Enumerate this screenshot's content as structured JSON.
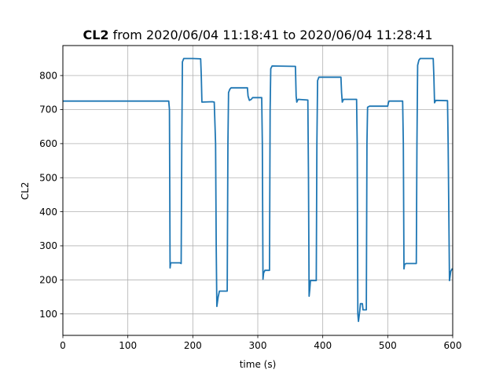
{
  "chart_data": {
    "type": "line",
    "title_bold": "CL2",
    "title_rest": " from 2020/06/04 11:18:41 to 2020/06/04 11:28:41",
    "xlabel": "time (s)",
    "ylabel": "CL2",
    "xlim": [
      0,
      600
    ],
    "ylim": [
      37,
      888
    ],
    "xticks": [
      0,
      100,
      200,
      300,
      400,
      500,
      600
    ],
    "yticks": [
      100,
      200,
      300,
      400,
      500,
      600,
      700,
      800
    ],
    "grid": true,
    "line_color": "#1f77b4",
    "series": [
      {
        "values": [
          [
            0,
            725
          ],
          [
            80,
            725
          ],
          [
            163,
            725
          ],
          [
            164,
            700
          ],
          [
            165,
            235
          ],
          [
            166,
            250
          ],
          [
            180,
            250
          ],
          [
            182,
            248
          ],
          [
            183,
            600
          ],
          [
            184,
            840
          ],
          [
            186,
            850
          ],
          [
            200,
            850
          ],
          [
            212,
            849
          ],
          [
            213,
            800
          ],
          [
            214,
            722
          ],
          [
            230,
            723
          ],
          [
            233,
            722
          ],
          [
            235,
            600
          ],
          [
            236,
            300
          ],
          [
            237,
            122
          ],
          [
            239,
            150
          ],
          [
            241,
            167
          ],
          [
            253,
            167
          ],
          [
            254,
            600
          ],
          [
            255,
            750
          ],
          [
            257,
            760
          ],
          [
            259,
            764
          ],
          [
            284,
            764
          ],
          [
            285,
            740
          ],
          [
            287,
            727
          ],
          [
            290,
            730
          ],
          [
            292,
            735
          ],
          [
            306,
            735
          ],
          [
            307,
            600
          ],
          [
            308,
            202
          ],
          [
            309,
            220
          ],
          [
            311,
            228
          ],
          [
            318,
            228
          ],
          [
            319,
            700
          ],
          [
            320,
            820
          ],
          [
            322,
            828
          ],
          [
            358,
            827
          ],
          [
            359,
            740
          ],
          [
            360,
            722
          ],
          [
            362,
            730
          ],
          [
            377,
            728
          ],
          [
            378,
            500
          ],
          [
            379,
            152
          ],
          [
            380,
            170
          ],
          [
            381,
            198
          ],
          [
            390,
            198
          ],
          [
            391,
            600
          ],
          [
            392,
            785
          ],
          [
            394,
            795
          ],
          [
            428,
            795
          ],
          [
            429,
            750
          ],
          [
            430,
            722
          ],
          [
            432,
            730
          ],
          [
            452,
            730
          ],
          [
            453,
            600
          ],
          [
            454,
            100
          ],
          [
            455,
            78
          ],
          [
            457,
            110
          ],
          [
            458,
            130
          ],
          [
            461,
            130
          ],
          [
            462,
            112
          ],
          [
            467,
            112
          ],
          [
            468,
            600
          ],
          [
            469,
            707
          ],
          [
            472,
            710
          ],
          [
            500,
            710
          ],
          [
            501,
            720
          ],
          [
            502,
            725
          ],
          [
            523,
            725
          ],
          [
            524,
            600
          ],
          [
            525,
            232
          ],
          [
            526,
            245
          ],
          [
            528,
            248
          ],
          [
            544,
            248
          ],
          [
            545,
            600
          ],
          [
            546,
            830
          ],
          [
            548,
            845
          ],
          [
            550,
            850
          ],
          [
            570,
            850
          ],
          [
            571,
            800
          ],
          [
            572,
            720
          ],
          [
            574,
            727
          ],
          [
            592,
            726
          ],
          [
            593,
            600
          ],
          [
            595,
            198
          ],
          [
            597,
            225
          ],
          [
            599,
            232
          ],
          [
            600,
            230
          ]
        ]
      }
    ]
  }
}
